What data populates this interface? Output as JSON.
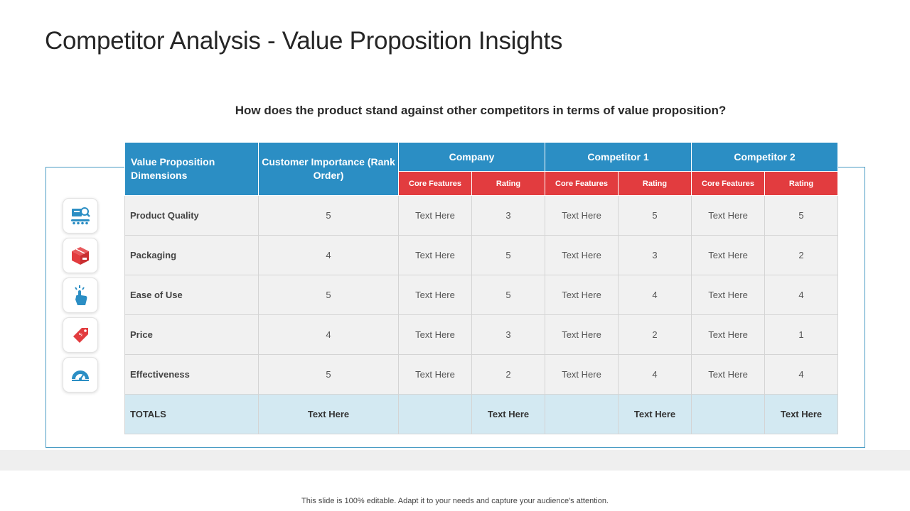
{
  "title": "Competitor Analysis - Value Proposition Insights",
  "subtitle": "How does the product stand against other competitors in terms of value proposition?",
  "colors": {
    "header_blue": "#2b8ec4",
    "header_red": "#e23c3f",
    "row_gray": "#f1f1f1",
    "totals_blue": "#d3e9f2",
    "frame_blue": "#4a9cc4"
  },
  "table": {
    "dimension_header": "Value Proposition Dimensions",
    "importance_header": "Customer Importance (Rank Order)",
    "groups": [
      "Company",
      "Competitor 1",
      "Competitor 2"
    ],
    "sub_core": "Core Features",
    "sub_rating": "Rating",
    "rows": [
      {
        "label": "Product Quality",
        "importance": "5",
        "company_core": "Text Here",
        "company_rating": "3",
        "c1_core": "Text Here",
        "c1_rating": "5",
        "c2_core": "Text Here",
        "c2_rating": "5"
      },
      {
        "label": "Packaging",
        "importance": "4",
        "company_core": "Text Here",
        "company_rating": "5",
        "c1_core": "Text Here",
        "c1_rating": "3",
        "c2_core": "Text Here",
        "c2_rating": "2"
      },
      {
        "label": "Ease of Use",
        "importance": "5",
        "company_core": "Text Here",
        "company_rating": "5",
        "c1_core": "Text Here",
        "c1_rating": "4",
        "c2_core": "Text Here",
        "c2_rating": "4"
      },
      {
        "label": "Price",
        "importance": "4",
        "company_core": "Text Here",
        "company_rating": "3",
        "c1_core": "Text Here",
        "c1_rating": "2",
        "c2_core": "Text Here",
        "c2_rating": "1"
      },
      {
        "label": "Effectiveness",
        "importance": "5",
        "company_core": "Text Here",
        "company_rating": "2",
        "c1_core": "Text Here",
        "c1_rating": "4",
        "c2_core": "Text Here",
        "c2_rating": "4"
      }
    ],
    "totals": {
      "label": "TOTALS",
      "importance": "Text Here",
      "company_rating": "Text Here",
      "c1_rating": "Text Here",
      "c2_rating": "Text Here"
    }
  },
  "icons": [
    "quality-inspection-icon",
    "package-box-icon",
    "hand-tap-icon",
    "price-tag-icon",
    "speedometer-icon"
  ],
  "footer": "This slide is 100% editable. Adapt it to your needs and capture your audience's attention."
}
